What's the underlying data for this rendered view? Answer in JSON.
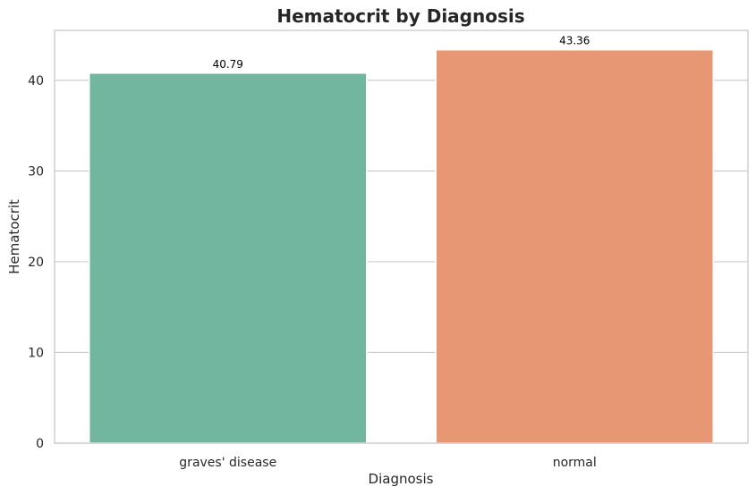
{
  "chart_data": {
    "type": "bar",
    "title": "Hematocrit by Diagnosis",
    "xlabel": "Diagnosis",
    "ylabel": "Hematocrit",
    "categories": [
      "graves' disease",
      "normal"
    ],
    "values": [
      40.79,
      43.36
    ],
    "data_labels": [
      "40.79",
      "43.36"
    ],
    "yticks": [
      0,
      10,
      20,
      30,
      40
    ],
    "ylim": [
      0,
      45.5
    ],
    "grid": true,
    "grid_axis": "y",
    "colors": [
      "#73b6a0",
      "#e89774"
    ]
  }
}
